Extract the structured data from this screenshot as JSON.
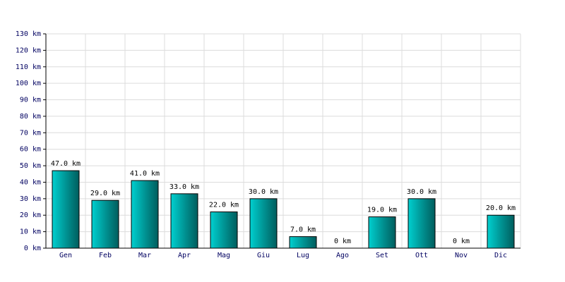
{
  "chart_data": {
    "type": "bar",
    "categories": [
      "Gen",
      "Feb",
      "Mar",
      "Apr",
      "Mag",
      "Giu",
      "Lug",
      "Ago",
      "Set",
      "Ott",
      "Nov",
      "Dic"
    ],
    "values": [
      47,
      29,
      41,
      33,
      22,
      30,
      7,
      0,
      19,
      30,
      0,
      20
    ],
    "value_labels": [
      "47.0 km",
      "29.0 km",
      "41.0 km",
      "33.0 km",
      "22.0 km",
      "30.0 km",
      "7.0 km",
      "0 km",
      "19.0 km",
      "30.0 km",
      "0 km",
      "20.0 km"
    ],
    "color": "#00d0d0",
    "ylim": [
      0,
      130
    ],
    "yticks": [
      {
        "value": 0,
        "label": "0 km"
      },
      {
        "value": 10,
        "label": "10 km"
      },
      {
        "value": 20,
        "label": "20 km"
      },
      {
        "value": 30,
        "label": "30 km"
      },
      {
        "value": 40,
        "label": "40 km"
      },
      {
        "value": 50,
        "label": "50 km"
      },
      {
        "value": 60,
        "label": "60 km"
      },
      {
        "value": 70,
        "label": "70 km"
      },
      {
        "value": 80,
        "label": "80 km"
      },
      {
        "value": 90,
        "label": "90 km"
      },
      {
        "value": 100,
        "label": "100 km"
      },
      {
        "value": 110,
        "label": "110 km"
      },
      {
        "value": 120,
        "label": "120 km"
      },
      {
        "value": 130,
        "label": "130 km"
      }
    ],
    "grid": true
  }
}
